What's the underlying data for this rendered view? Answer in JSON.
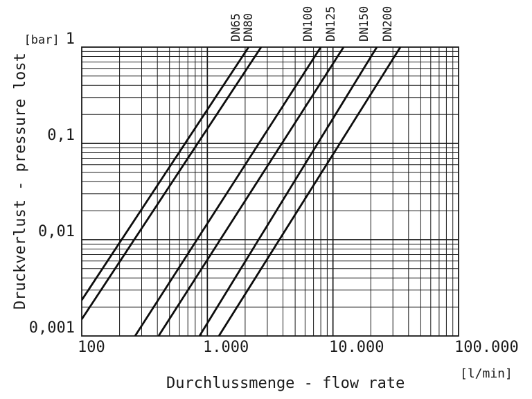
{
  "figure": {
    "background": "#ffffff",
    "ink_color": "#1a1a1a",
    "line_color": "#0d0d0d"
  },
  "chart_data": {
    "type": "line",
    "title": "",
    "x_scale": "log",
    "y_scale": "log",
    "xlabel": "Durchlussmenge - flow rate",
    "ylabel": "Druckverlust - pressure lost",
    "x_unit": "[l/min]",
    "y_unit": "[bar]",
    "xlim": [
      100,
      100000
    ],
    "ylim": [
      0.001,
      1
    ],
    "grid": "log major and minor gridlines on both axes, closed frame",
    "legend_position": "series labels rotated 90deg above top edge at each line exit",
    "x_ticks": [
      {
        "label": "100",
        "value": 100
      },
      {
        "label": "1.000",
        "value": 1000
      },
      {
        "label": "10.000",
        "value": 10000
      },
      {
        "label": "100.000",
        "value": 100000
      }
    ],
    "y_ticks": [
      {
        "label": "1",
        "value": 1,
        "prefix": "[bar]"
      },
      {
        "label": "0,1",
        "value": 0.1
      },
      {
        "label": "0,01",
        "value": 0.01
      },
      {
        "label": "0,001",
        "value": 0.001
      }
    ],
    "series": [
      {
        "name": "DN65",
        "q_at_1bar": 2130,
        "points": [
          [
            100,
            0.00236
          ],
          [
            2130,
            1
          ]
        ]
      },
      {
        "name": "DN80",
        "q_at_1bar": 2680,
        "points": [
          [
            100,
            0.00149
          ],
          [
            2680,
            1
          ]
        ]
      },
      {
        "name": "DN100",
        "q_at_1bar": 8000,
        "points": [
          [
            266,
            0.001
          ],
          [
            8000,
            1
          ]
        ]
      },
      {
        "name": "DN125",
        "q_at_1bar": 12150,
        "points": [
          [
            409,
            0.001
          ],
          [
            12150,
            1
          ]
        ]
      },
      {
        "name": "DN150",
        "q_at_1bar": 22350,
        "points": [
          [
            866,
            0.001
          ],
          [
            22350,
            1
          ]
        ]
      },
      {
        "name": "DN200",
        "q_at_1bar": 34420,
        "points": [
          [
            1236,
            0.001
          ],
          [
            34420,
            1
          ]
        ]
      }
    ]
  }
}
